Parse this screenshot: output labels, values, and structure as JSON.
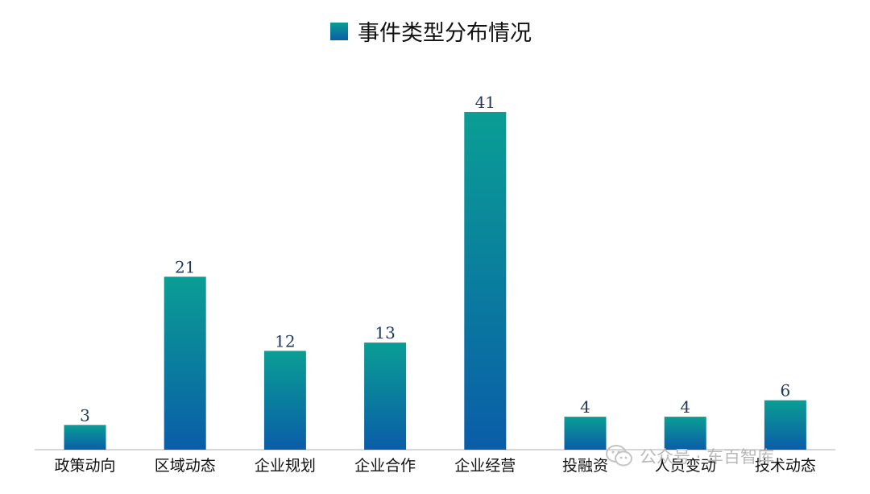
{
  "chart_data": {
    "type": "bar",
    "title": "",
    "xlabel": "",
    "ylabel": "",
    "ylim": [
      0,
      45
    ],
    "grid": false,
    "legend": "top-center",
    "categories": [
      "政策动向",
      "区域动态",
      "企业规划",
      "企业合作",
      "企业经营",
      "投融资",
      "人员变动",
      "技术动态"
    ],
    "series": [
      {
        "name": "事件类型分布情况",
        "values": [
          3,
          21,
          12,
          13,
          41,
          4,
          4,
          6
        ]
      }
    ],
    "data_labels": [
      "3",
      "21",
      "12",
      "13",
      "41",
      "4",
      "4",
      "6"
    ],
    "colors": {
      "bar_top": "#0a9e94",
      "bar_bottom": "#0a5da8",
      "label_text": "#1f3864",
      "axis": "#bfbfbf",
      "tick_text": "#111111"
    }
  },
  "watermark": {
    "icon": "wechat-icon",
    "text": "公众号 · 车百智库"
  }
}
